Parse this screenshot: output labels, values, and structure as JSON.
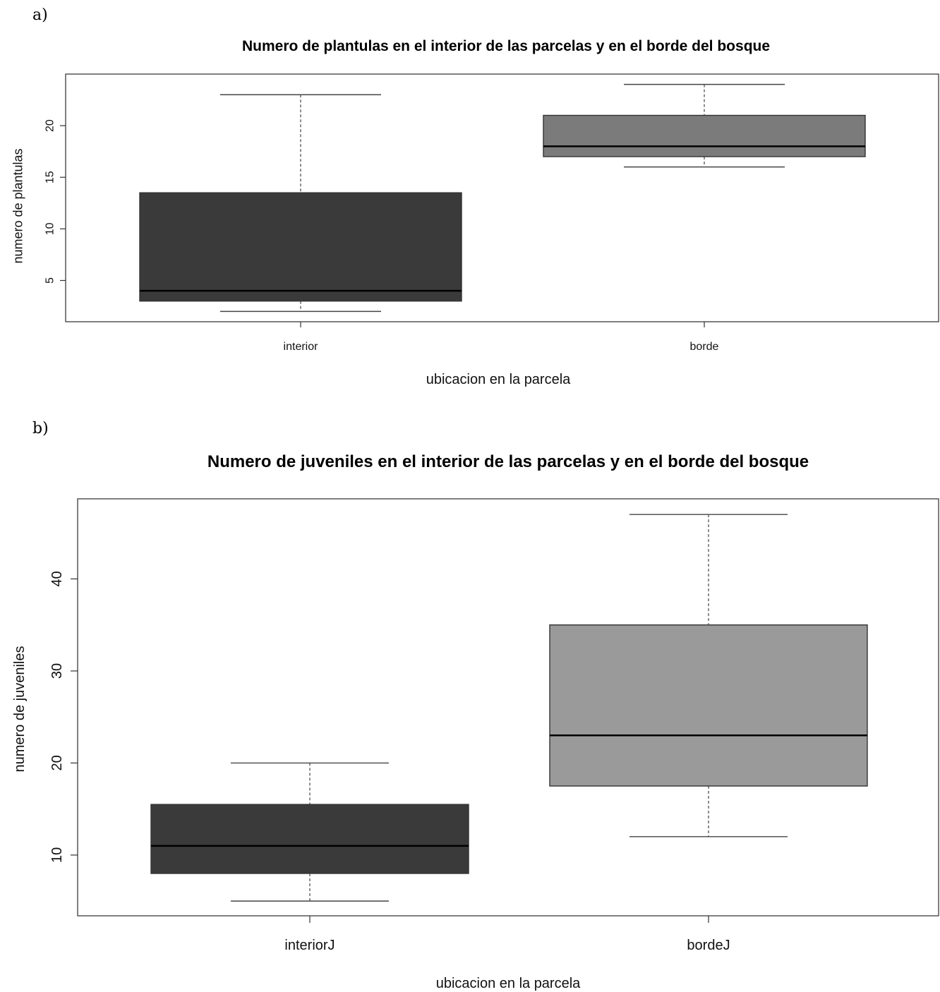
{
  "chart_data": [
    {
      "panel_letter": "a)",
      "type": "box",
      "title": "Numero de plantulas en el interior de las parcelas y en el borde del bosque",
      "xlabel": "ubicacion en la parcela",
      "ylabel": "numero de plantulas",
      "categories": [
        "interior",
        "borde"
      ],
      "yticks": [
        5,
        10,
        15,
        20
      ],
      "ylim": [
        1.0,
        25.0
      ],
      "grid": false,
      "boxes": [
        {
          "category": "interior",
          "min": 2,
          "q1": 3,
          "median": 4,
          "q3": 13.5,
          "max": 23,
          "color": "#3a3a3a"
        },
        {
          "category": "borde",
          "min": 16,
          "q1": 17,
          "median": 18,
          "q3": 21,
          "max": 24,
          "color": "#7b7b7b"
        }
      ]
    },
    {
      "panel_letter": "b)",
      "type": "box",
      "title": "Numero de juveniles en el interior de las parcelas y en el borde del bosque",
      "xlabel": "ubicacion en la parcela",
      "ylabel": "numero de juveniles",
      "categories": [
        "interiorJ",
        "bordeJ"
      ],
      "yticks": [
        10,
        20,
        30,
        40
      ],
      "ylim": [
        3.4,
        48.7
      ],
      "grid": false,
      "boxes": [
        {
          "category": "interiorJ",
          "min": 5,
          "q1": 8,
          "median": 11,
          "q3": 15.5,
          "max": 20,
          "color": "#3a3a3a"
        },
        {
          "category": "bordeJ",
          "min": 12,
          "q1": 17.5,
          "median": 23,
          "q3": 35,
          "max": 47,
          "color": "#9a9a9a"
        }
      ]
    }
  ]
}
